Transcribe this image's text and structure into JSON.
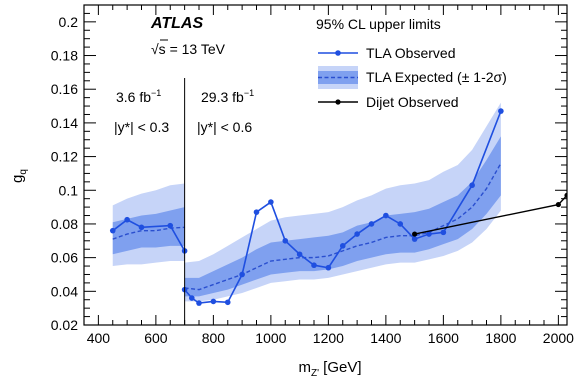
{
  "chart_data": {
    "type": "line",
    "xlabel": "m",
    "xlabel_sub": "Z'",
    "xlabel_unit": " [GeV]",
    "ylabel": "g",
    "ylabel_sub": "q",
    "xlim": [
      350,
      2030
    ],
    "ylim": [
      0.02,
      0.21
    ],
    "x_ticks": [
      400,
      600,
      800,
      1000,
      1200,
      1400,
      1600,
      1800,
      2000
    ],
    "y_ticks": [
      0.02,
      0.04,
      0.06,
      0.08,
      0.1,
      0.12,
      0.14,
      0.16,
      0.18,
      0.2
    ],
    "x_tick_labels": [
      "400",
      "600",
      "800",
      "1000",
      "1200",
      "1400",
      "1600",
      "1800",
      "2000"
    ],
    "y_tick_labels": [
      "0.02",
      "0.04",
      "0.06",
      "0.08",
      "0.1",
      "0.12",
      "0.14",
      "0.16",
      "0.18",
      "0.2"
    ],
    "grid": false,
    "legend_placement": "top-right",
    "annotations": {
      "atlas": "ATLAS",
      "sqrt_s_symbol": "√s",
      "energy": " = 13 TeV",
      "lumi_left": "3.6 fb",
      "lumi_left_sup": "−1",
      "lumi_right": "29.3 fb",
      "lumi_right_sup": "−1",
      "ycut_left": "|y*| < 0.3",
      "ycut_right": "|y*| < 0.6",
      "divider_x": 700,
      "legend_header": "95% CL upper limits",
      "legend_observed": "TLA Observed",
      "legend_expected": "TLA Expected (± 1-2σ)",
      "legend_dijet": "Dijet Observed"
    },
    "series": [
      {
        "name": "TLA Observed",
        "segments": [
          {
            "x": [
              450,
              500,
              550,
              650,
              700
            ],
            "y": [
              0.076,
              0.0825,
              0.078,
              0.079,
              0.064
            ]
          },
          {
            "x": [
              700,
              725,
              750,
              800,
              850,
              900,
              950,
              1000,
              1050,
              1100,
              1150,
              1200,
              1250,
              1300,
              1350,
              1400,
              1450,
              1500,
              1550,
              1600,
              1700,
              1800
            ],
            "y": [
              0.041,
              0.036,
              0.033,
              0.034,
              0.0335,
              0.05,
              0.087,
              0.093,
              0.07,
              0.062,
              0.0555,
              0.054,
              0.067,
              0.074,
              0.08,
              0.085,
              0.08,
              0.071,
              0.074,
              0.075,
              0.103,
              0.147
            ]
          }
        ]
      },
      {
        "name": "TLA Expected (± 1-2σ)",
        "segments": [
          {
            "x": [
              450,
              500,
              550,
              600,
              650,
              700
            ],
            "y": [
              0.071,
              0.074,
              0.076,
              0.076,
              0.0775,
              0.078
            ],
            "band1_lo": [
              0.062,
              0.064,
              0.066,
              0.066,
              0.067,
              0.067
            ],
            "band1_hi": [
              0.081,
              0.083,
              0.085,
              0.086,
              0.088,
              0.09
            ],
            "band2_lo": [
              0.055,
              0.056,
              0.056,
              0.057,
              0.058,
              0.058
            ],
            "band2_hi": [
              0.091,
              0.095,
              0.098,
              0.1,
              0.103,
              0.104
            ]
          },
          {
            "x": [
              700,
              750,
              800,
              850,
              900,
              950,
              1000,
              1050,
              1100,
              1150,
              1200,
              1250,
              1300,
              1350,
              1400,
              1450,
              1500,
              1550,
              1600,
              1650,
              1700,
              1750,
              1800
            ],
            "y": [
              0.042,
              0.041,
              0.044,
              0.047,
              0.05,
              0.054,
              0.058,
              0.059,
              0.06,
              0.06,
              0.061,
              0.064,
              0.067,
              0.069,
              0.072,
              0.073,
              0.073,
              0.075,
              0.079,
              0.083,
              0.09,
              0.101,
              0.116
            ],
            "band1_lo": [
              0.037,
              0.037,
              0.039,
              0.041,
              0.044,
              0.047,
              0.05,
              0.051,
              0.052,
              0.052,
              0.053,
              0.055,
              0.058,
              0.06,
              0.062,
              0.063,
              0.063,
              0.065,
              0.068,
              0.071,
              0.077,
              0.086,
              0.097
            ],
            "band1_hi": [
              0.048,
              0.048,
              0.052,
              0.056,
              0.06,
              0.065,
              0.069,
              0.07,
              0.071,
              0.072,
              0.073,
              0.075,
              0.079,
              0.081,
              0.085,
              0.086,
              0.087,
              0.089,
              0.093,
              0.097,
              0.105,
              0.118,
              0.132
            ],
            "band2_lo": [
              0.034,
              0.034,
              0.035,
              0.037,
              0.039,
              0.042,
              0.045,
              0.046,
              0.047,
              0.047,
              0.048,
              0.05,
              0.052,
              0.054,
              0.056,
              0.057,
              0.057,
              0.059,
              0.061,
              0.064,
              0.069,
              0.077,
              0.088
            ],
            "band2_hi": [
              0.057,
              0.058,
              0.062,
              0.067,
              0.072,
              0.077,
              0.082,
              0.084,
              0.085,
              0.086,
              0.087,
              0.09,
              0.094,
              0.097,
              0.101,
              0.103,
              0.104,
              0.106,
              0.111,
              0.115,
              0.124,
              0.138,
              0.152
            ]
          }
        ]
      },
      {
        "name": "Dijet Observed",
        "segments": [
          {
            "x": [
              1500,
              2000,
              2030
            ],
            "y": [
              0.074,
              0.0915,
              0.097
            ]
          }
        ]
      }
    ]
  },
  "colors": {
    "observed": "#1f4fe0",
    "expected_line": "#2a4fcf",
    "band_1sigma": "#7fa0ef",
    "band_2sigma": "#c6d4f8",
    "dijet": "#000000"
  }
}
